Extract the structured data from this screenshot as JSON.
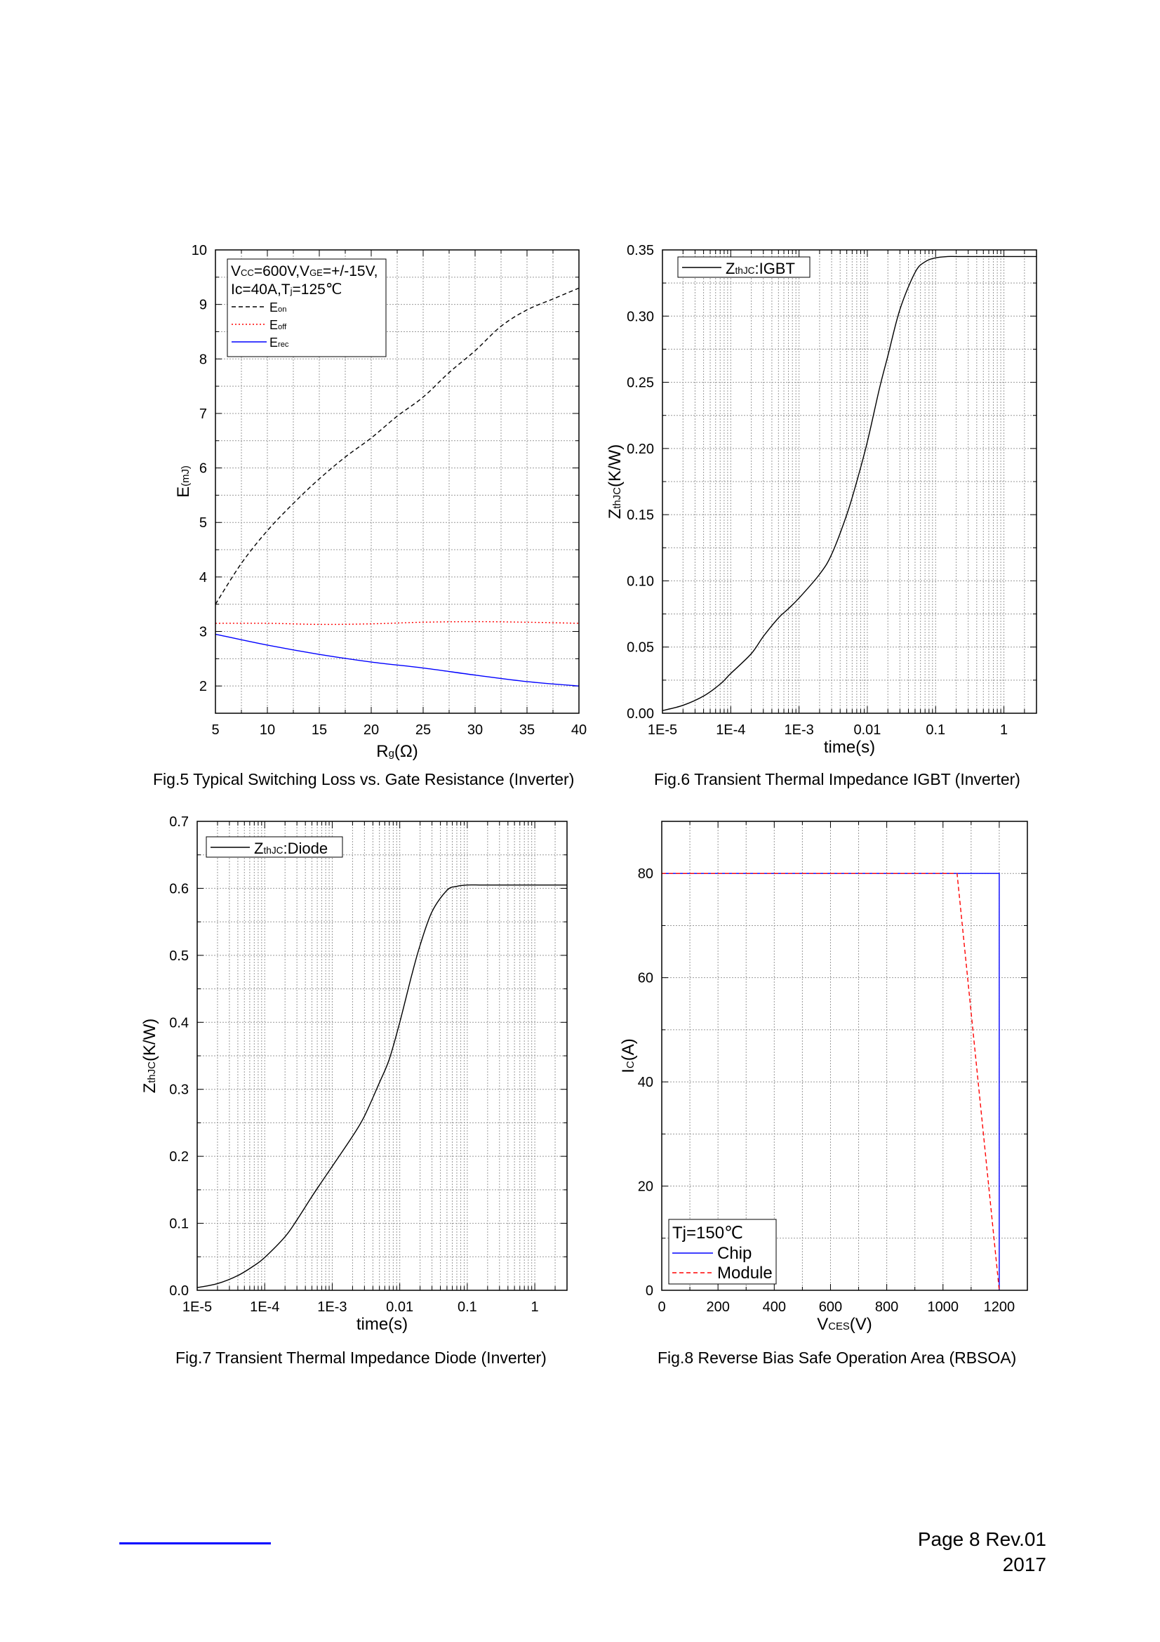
{
  "page": {
    "page_label": "Page 8 Rev.01",
    "year": "2017"
  },
  "chart_data": [
    {
      "id": "fig5",
      "type": "line",
      "title": "Fig.5 Typical Switching Loss vs. Gate Resistance (Inverter)",
      "xlabel": "Rg(Ω)",
      "ylabel": "E(mJ)",
      "xscale": "linear",
      "xlim": [
        5,
        40
      ],
      "ylim": [
        1.5,
        10
      ],
      "xticks": [
        5,
        10,
        15,
        20,
        25,
        30,
        35,
        40
      ],
      "xtick_labels": [
        "5",
        "10",
        "15",
        "20",
        "25",
        "30",
        "35",
        "40"
      ],
      "yticks": [
        2,
        3,
        4,
        5,
        6,
        7,
        8,
        9,
        10
      ],
      "ytick_labels": [
        "2",
        "3",
        "4",
        "5",
        "6",
        "7",
        "8",
        "9",
        "10"
      ],
      "grid": true,
      "legend_position": "top-left",
      "legend_title": [
        "VCC=600V,VGE=+/-15V,",
        "Ic=40A,Tj=125℃"
      ],
      "series": [
        {
          "name": "Eon",
          "color": "#000000",
          "style": "dash",
          "x": [
            5,
            7.5,
            10,
            12.5,
            15,
            17.5,
            20,
            22.5,
            25,
            27.5,
            30,
            32.5,
            35,
            37.5,
            40
          ],
          "values": [
            3.5,
            4.25,
            4.85,
            5.35,
            5.8,
            6.2,
            6.55,
            6.95,
            7.3,
            7.75,
            8.15,
            8.6,
            8.9,
            9.1,
            9.3
          ]
        },
        {
          "name": "Eoff",
          "color": "#ff0000",
          "style": "dot",
          "x": [
            5,
            10,
            15,
            20,
            25,
            30,
            35,
            40
          ],
          "values": [
            3.15,
            3.15,
            3.13,
            3.14,
            3.17,
            3.18,
            3.17,
            3.15
          ]
        },
        {
          "name": "Erec",
          "color": "#0000ff",
          "style": "solid",
          "x": [
            5,
            10,
            15,
            20,
            25,
            30,
            35,
            40
          ],
          "values": [
            2.95,
            2.75,
            2.58,
            2.44,
            2.33,
            2.2,
            2.08,
            2.0
          ]
        }
      ]
    },
    {
      "id": "fig6",
      "type": "line",
      "title": "Fig.6 Transient Thermal Impedance IGBT (Inverter)",
      "xlabel": "time(s)",
      "ylabel": "ZthJC(K/W)",
      "xscale": "log",
      "xlim": [
        1e-05,
        3
      ],
      "ylim": [
        0,
        0.35
      ],
      "xticks": [
        1e-05,
        0.0001,
        0.001,
        0.01,
        0.1,
        1
      ],
      "xtick_labels": [
        "1E-5",
        "1E-4",
        "1E-3",
        "0.01",
        "0.1",
        "1"
      ],
      "yticks": [
        0,
        0.05,
        0.1,
        0.15,
        0.2,
        0.25,
        0.3,
        0.35
      ],
      "ytick_labels": [
        "0.00",
        "0.05",
        "0.10",
        "0.15",
        "0.20",
        "0.25",
        "0.30",
        "0.35"
      ],
      "grid": true,
      "legend_position": "top-left",
      "series": [
        {
          "name": "ZthJC:IGBT",
          "color": "#000000",
          "style": "solid",
          "x": [
            1e-05,
            2e-05,
            4e-05,
            7e-05,
            0.0001,
            0.0002,
            0.0003,
            0.0005,
            0.0007,
            0.001,
            0.002,
            0.003,
            0.005,
            0.007,
            0.01,
            0.015,
            0.02,
            0.03,
            0.05,
            0.07,
            0.1,
            0.15,
            0.2,
            0.3,
            1,
            3
          ],
          "values": [
            0.002,
            0.006,
            0.013,
            0.022,
            0.03,
            0.045,
            0.058,
            0.072,
            0.079,
            0.087,
            0.105,
            0.12,
            0.15,
            0.175,
            0.205,
            0.245,
            0.27,
            0.305,
            0.333,
            0.341,
            0.344,
            0.345,
            0.345,
            0.345,
            0.345,
            0.345
          ]
        }
      ]
    },
    {
      "id": "fig7",
      "type": "line",
      "title": "Fig.7 Transient Thermal Impedance Diode (Inverter)",
      "xlabel": "time(s)",
      "ylabel": "ZthJC(K/W)",
      "xscale": "log",
      "xlim": [
        1e-05,
        3
      ],
      "ylim": [
        0,
        0.7
      ],
      "xticks": [
        1e-05,
        0.0001,
        0.001,
        0.01,
        0.1,
        1
      ],
      "xtick_labels": [
        "1E-5",
        "1E-4",
        "1E-3",
        "0.01",
        "0.1",
        "1"
      ],
      "yticks": [
        0,
        0.1,
        0.2,
        0.3,
        0.4,
        0.5,
        0.6,
        0.7
      ],
      "ytick_labels": [
        "0.0",
        "0.1",
        "0.2",
        "0.3",
        "0.4",
        "0.5",
        "0.6",
        "0.7"
      ],
      "grid": true,
      "legend_position": "top-left",
      "series": [
        {
          "name": "ZthJC:Diode",
          "color": "#000000",
          "style": "solid",
          "x": [
            1e-05,
            2e-05,
            4e-05,
            7e-05,
            0.0001,
            0.0002,
            0.0003,
            0.0005,
            0.0007,
            0.001,
            0.002,
            0.003,
            0.005,
            0.007,
            0.01,
            0.015,
            0.02,
            0.03,
            0.05,
            0.07,
            0.1,
            0.15,
            0.2,
            0.3,
            1,
            3
          ],
          "values": [
            0.004,
            0.01,
            0.022,
            0.037,
            0.049,
            0.08,
            0.105,
            0.14,
            0.162,
            0.185,
            0.23,
            0.26,
            0.31,
            0.345,
            0.4,
            0.47,
            0.515,
            0.565,
            0.597,
            0.603,
            0.605,
            0.605,
            0.605,
            0.605,
            0.605,
            0.605
          ]
        }
      ]
    },
    {
      "id": "fig8",
      "type": "line",
      "title": "Fig.8 Reverse Bias Safe Operation Area (RBSOA)",
      "xlabel": "VCES(V)",
      "ylabel": "Ic(A)",
      "xscale": "linear",
      "xlim": [
        0,
        1300
      ],
      "ylim": [
        0,
        90
      ],
      "xticks": [
        0,
        200,
        400,
        600,
        800,
        1000,
        1200
      ],
      "xtick_labels": [
        "0",
        "200",
        "400",
        "600",
        "800",
        "1000",
        "1200"
      ],
      "yticks": [
        0,
        20,
        40,
        60,
        80
      ],
      "ytick_labels": [
        "0",
        "20",
        "40",
        "60",
        "80"
      ],
      "grid": true,
      "legend_position": "bottom-left",
      "legend_title": [
        "Tj=150℃"
      ],
      "series": [
        {
          "name": "Chip",
          "color": "#0000ff",
          "style": "solid",
          "x": [
            0,
            1200,
            1200
          ],
          "values": [
            80,
            80,
            0
          ]
        },
        {
          "name": "Module",
          "color": "#ff0000",
          "style": "dash",
          "x": [
            0,
            1050,
            1200
          ],
          "values": [
            80,
            80,
            0
          ]
        }
      ]
    }
  ]
}
